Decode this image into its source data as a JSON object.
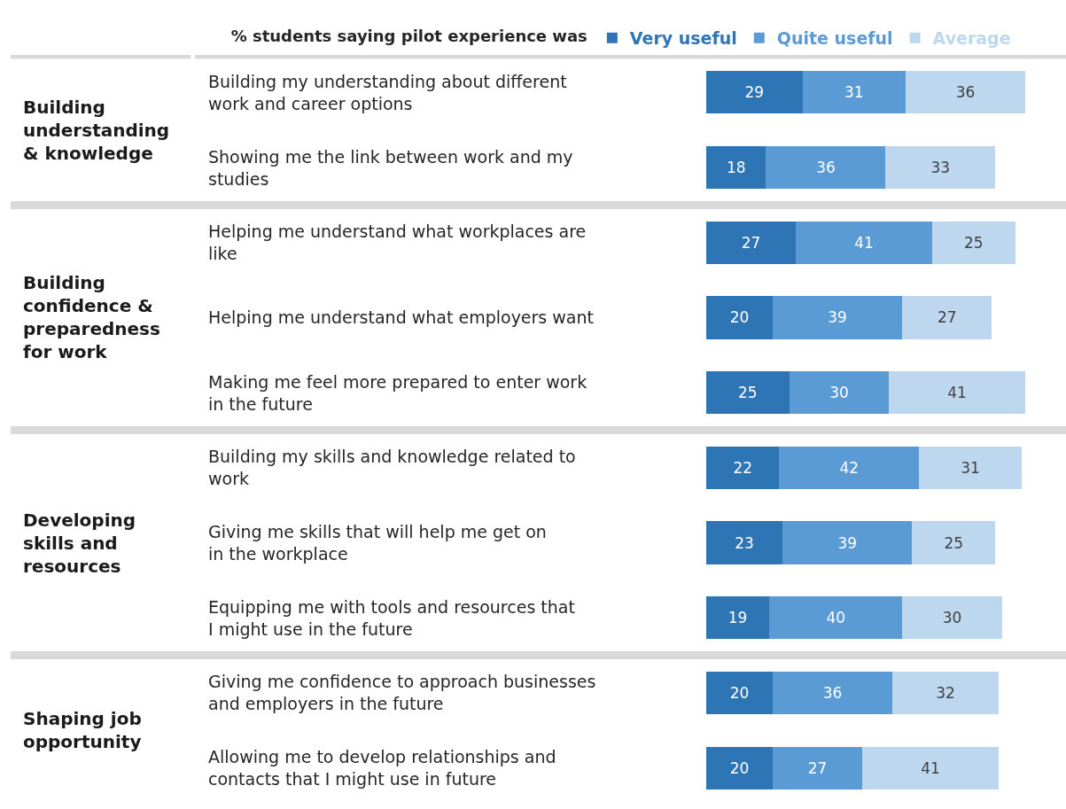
{
  "chart_data": {
    "type": "bar",
    "orientation": "horizontal",
    "stacked": true,
    "data_labels": true,
    "legend": "top",
    "legend_title": "% students saying pilot experience was",
    "tick_labels": false,
    "categories": [
      "Building my understanding about different work and career options",
      "Showing me the link between work and my studies",
      "Helping me understand what workplaces are like",
      "Helping me understand what employers want",
      "Making me feel more prepared to enter work in the future",
      "Building my skills and knowledge related to work",
      "Giving me skills that will help me get on in the workplace",
      "Equipping me with tools and resources that I might use in the future",
      "Giving me confidence to approach businesses and employers in the future",
      "Allowing me to develop relationships and contacts that I might use in future"
    ],
    "series": [
      {
        "name": "Very useful",
        "color": "#2e75b6",
        "values": [
          29,
          18,
          27,
          20,
          25,
          22,
          23,
          19,
          20,
          20
        ]
      },
      {
        "name": "Quite useful",
        "color": "#5b9bd5",
        "values": [
          31,
          36,
          41,
          39,
          30,
          42,
          39,
          40,
          36,
          27
        ]
      },
      {
        "name": "Average",
        "color": "#bdd7ee",
        "values": [
          36,
          33,
          25,
          27,
          41,
          31,
          25,
          30,
          32,
          41
        ]
      }
    ],
    "annotations": [
      "Building understanding & knowledge",
      "Building confidence & preparedness for work",
      "Developing skills and resources",
      "Shaping job opportunity"
    ]
  }
}
